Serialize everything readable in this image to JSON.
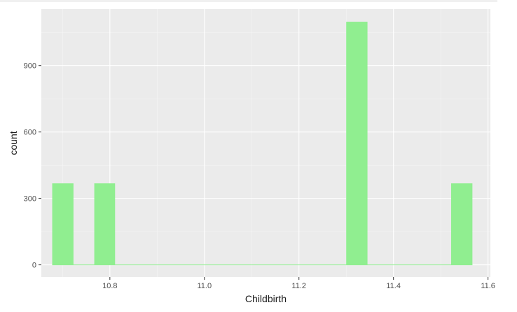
{
  "chart_data": {
    "type": "bar",
    "subtype": "histogram",
    "xlabel": "Childbirth",
    "ylabel": "count",
    "xlim": [
      10.655,
      11.605
    ],
    "ylim": [
      -55,
      1155
    ],
    "x_ticks": [
      10.8,
      11.0,
      11.2,
      11.4,
      11.6
    ],
    "x_tick_labels": [
      "10.8",
      "11.0",
      "11.2",
      "11.4",
      "11.6"
    ],
    "y_ticks": [
      0,
      300,
      600,
      900
    ],
    "y_tick_labels": [
      "0",
      "300",
      "600",
      "900"
    ],
    "bin_width": 0.0444,
    "bins": [
      {
        "x_start": 10.678,
        "x_end": 10.723,
        "count": 368
      },
      {
        "x_start": 10.767,
        "x_end": 10.811,
        "count": 368
      },
      {
        "x_start": 11.3,
        "x_end": 11.345,
        "count": 1098
      },
      {
        "x_start": 11.522,
        "x_end": 11.567,
        "count": 368
      }
    ],
    "bar_color": "#90ee90",
    "panel_background": "#ebebeb",
    "grid": true,
    "legend": "none"
  }
}
